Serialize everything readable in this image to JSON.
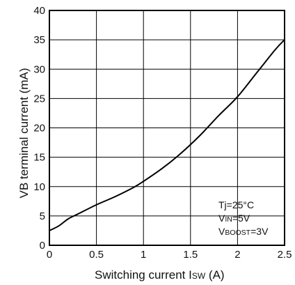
{
  "chart_data": {
    "type": "line",
    "xlabel": {
      "main": "Switching current  I",
      "sub": "SW",
      "tail": " (A)"
    },
    "ylabel": "VB terminal current (mA)",
    "xlim": [
      0,
      2.5
    ],
    "ylim": [
      0,
      40
    ],
    "xticks": [
      "0",
      "0.5",
      "1",
      "1.5",
      "2",
      "2.5"
    ],
    "yticks": [
      "0",
      "5",
      "10",
      "15",
      "20",
      "25",
      "30",
      "35",
      "40"
    ],
    "grid": true,
    "annotations": [
      {
        "main": "Tj=25°C",
        "sub": "",
        "tail": ""
      },
      {
        "main": "V",
        "sub": "IN",
        "tail": "=5V"
      },
      {
        "main": "V",
        "sub": "BOOST",
        "tail": "=3V"
      }
    ],
    "series": [
      {
        "x": [
          0,
          0.1,
          0.2,
          0.3,
          0.5,
          0.7,
          0.9,
          1.0,
          1.2,
          1.4,
          1.6,
          1.8,
          2.0,
          2.2,
          2.4,
          2.5
        ],
        "y": [
          2.5,
          3.3,
          4.5,
          5.3,
          6.9,
          8.3,
          9.9,
          10.9,
          13.1,
          15.7,
          18.7,
          22.1,
          25.3,
          29.3,
          33.3,
          35.0
        ]
      }
    ]
  }
}
